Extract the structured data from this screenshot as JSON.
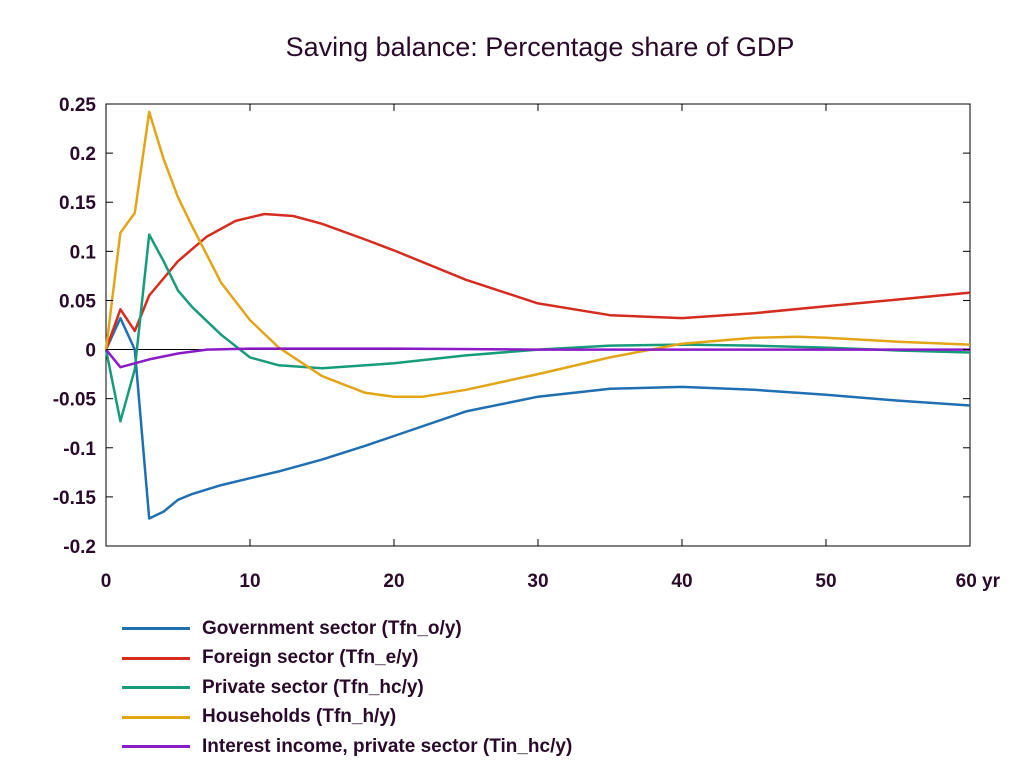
{
  "chart_data": {
    "type": "line",
    "title": "Saving balance: Percentage share of GDP",
    "xlabel": "",
    "ylabel": "",
    "xlim": [
      0,
      60
    ],
    "ylim": [
      -0.2,
      0.25
    ],
    "x_ticks": [
      "0",
      "10",
      "20",
      "30",
      "40",
      "50",
      "60 yr"
    ],
    "y_ticks": [
      "0.25",
      "0.2",
      "0.15",
      "0.1",
      "0.05",
      "0",
      "-0.05",
      "-0.1",
      "-0.15",
      "-0.2"
    ],
    "grid": false,
    "legend_position": "bottom-left",
    "series": [
      {
        "name": "Government sector (Tfn_o/y)",
        "color": "#1f6fb2",
        "points": [
          [
            0,
            0
          ],
          [
            1,
            0.032
          ],
          [
            2,
            0.0
          ],
          [
            3,
            -0.172
          ],
          [
            4,
            -0.165
          ],
          [
            5,
            -0.153
          ],
          [
            6,
            -0.147
          ],
          [
            8,
            -0.138
          ],
          [
            10,
            -0.131
          ],
          [
            12,
            -0.124
          ],
          [
            15,
            -0.112
          ],
          [
            18,
            -0.098
          ],
          [
            20,
            -0.088
          ],
          [
            25,
            -0.063
          ],
          [
            30,
            -0.048
          ],
          [
            35,
            -0.04
          ],
          [
            40,
            -0.038
          ],
          [
            45,
            -0.041
          ],
          [
            50,
            -0.046
          ],
          [
            55,
            -0.052
          ],
          [
            60,
            -0.057
          ]
        ]
      },
      {
        "name": "Foreign sector (Tfn_e/y)",
        "color": "#d42d1f",
        "points": [
          [
            0,
            0
          ],
          [
            1,
            0.041
          ],
          [
            2,
            0.019
          ],
          [
            3,
            0.055
          ],
          [
            5,
            0.09
          ],
          [
            7,
            0.115
          ],
          [
            9,
            0.131
          ],
          [
            11,
            0.138
          ],
          [
            13,
            0.136
          ],
          [
            15,
            0.128
          ],
          [
            18,
            0.112
          ],
          [
            20,
            0.101
          ],
          [
            25,
            0.071
          ],
          [
            30,
            0.047
          ],
          [
            35,
            0.035
          ],
          [
            40,
            0.032
          ],
          [
            45,
            0.037
          ],
          [
            50,
            0.044
          ],
          [
            55,
            0.051
          ],
          [
            60,
            0.058
          ]
        ]
      },
      {
        "name": "Private sector (Tfn_hc/y)",
        "color": "#169c7a",
        "points": [
          [
            0,
            0
          ],
          [
            1,
            -0.073
          ],
          [
            2,
            -0.02
          ],
          [
            3,
            0.117
          ],
          [
            4,
            0.09
          ],
          [
            5,
            0.06
          ],
          [
            6,
            0.043
          ],
          [
            8,
            0.015
          ],
          [
            10,
            -0.008
          ],
          [
            12,
            -0.016
          ],
          [
            15,
            -0.019
          ],
          [
            20,
            -0.014
          ],
          [
            25,
            -0.006
          ],
          [
            30,
            0.0
          ],
          [
            35,
            0.004
          ],
          [
            40,
            0.005
          ],
          [
            45,
            0.004
          ],
          [
            50,
            0.002
          ],
          [
            55,
            -0.001
          ],
          [
            60,
            -0.003
          ]
        ]
      },
      {
        "name": "Households (Tfn_h/y)",
        "color": "#e3a518",
        "points": [
          [
            0,
            0
          ],
          [
            1,
            0.119
          ],
          [
            2,
            0.139
          ],
          [
            3,
            0.242
          ],
          [
            4,
            0.194
          ],
          [
            5,
            0.155
          ],
          [
            6,
            0.125
          ],
          [
            8,
            0.068
          ],
          [
            10,
            0.03
          ],
          [
            12,
            0.002
          ],
          [
            15,
            -0.027
          ],
          [
            18,
            -0.044
          ],
          [
            20,
            -0.048
          ],
          [
            22,
            -0.048
          ],
          [
            25,
            -0.041
          ],
          [
            30,
            -0.025
          ],
          [
            35,
            -0.008
          ],
          [
            40,
            0.006
          ],
          [
            45,
            0.012
          ],
          [
            48,
            0.013
          ],
          [
            50,
            0.012
          ],
          [
            55,
            0.008
          ],
          [
            60,
            0.005
          ]
        ]
      },
      {
        "name": "Interest income, private sector (Tin_hc/y)",
        "color": "#8a1bc6",
        "points": [
          [
            0,
            0
          ],
          [
            1,
            -0.018
          ],
          [
            2,
            -0.014
          ],
          [
            3,
            -0.01
          ],
          [
            5,
            -0.004
          ],
          [
            7,
            0.0
          ],
          [
            10,
            0.001
          ],
          [
            20,
            0.001
          ],
          [
            30,
            0.0
          ],
          [
            40,
            0.0
          ],
          [
            50,
            0.0
          ],
          [
            60,
            0.0
          ]
        ]
      }
    ]
  }
}
